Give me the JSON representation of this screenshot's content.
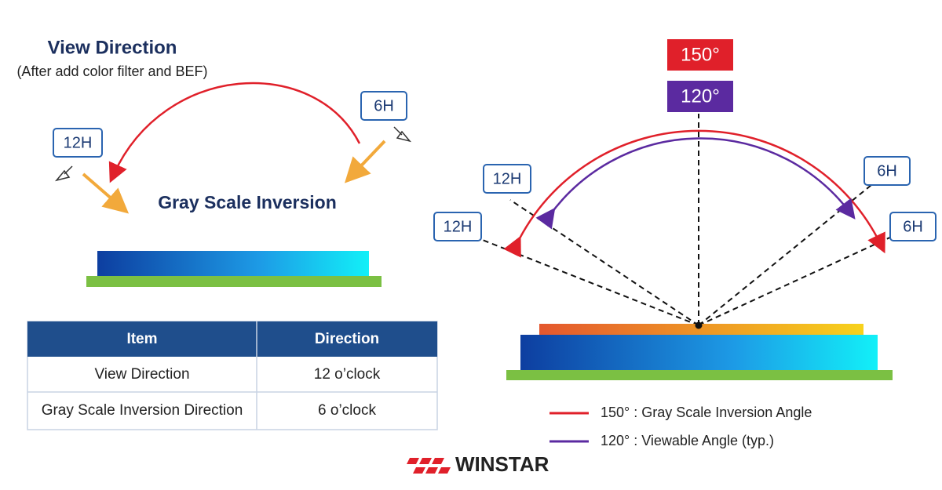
{
  "left": {
    "title": "View Direction",
    "subtitle": "(After add color filter and BEF)",
    "label_12h": "12H",
    "label_6h": "6H",
    "caption": "Gray Scale Inversion"
  },
  "table": {
    "header": [
      "Item",
      "Direction"
    ],
    "rows": [
      [
        "View Direction",
        "12 o’clock"
      ],
      [
        "Gray Scale Inversion Direction",
        "6 o’clock"
      ]
    ]
  },
  "right": {
    "angle_outer": "150°",
    "angle_inner": "120°",
    "labels": [
      "12H",
      "12H",
      "6H",
      "6H"
    ],
    "legend": [
      "150° : Gray Scale Inversion Angle",
      "120° :  Viewable Angle (typ.)"
    ]
  },
  "brand": "WINSTAR"
}
